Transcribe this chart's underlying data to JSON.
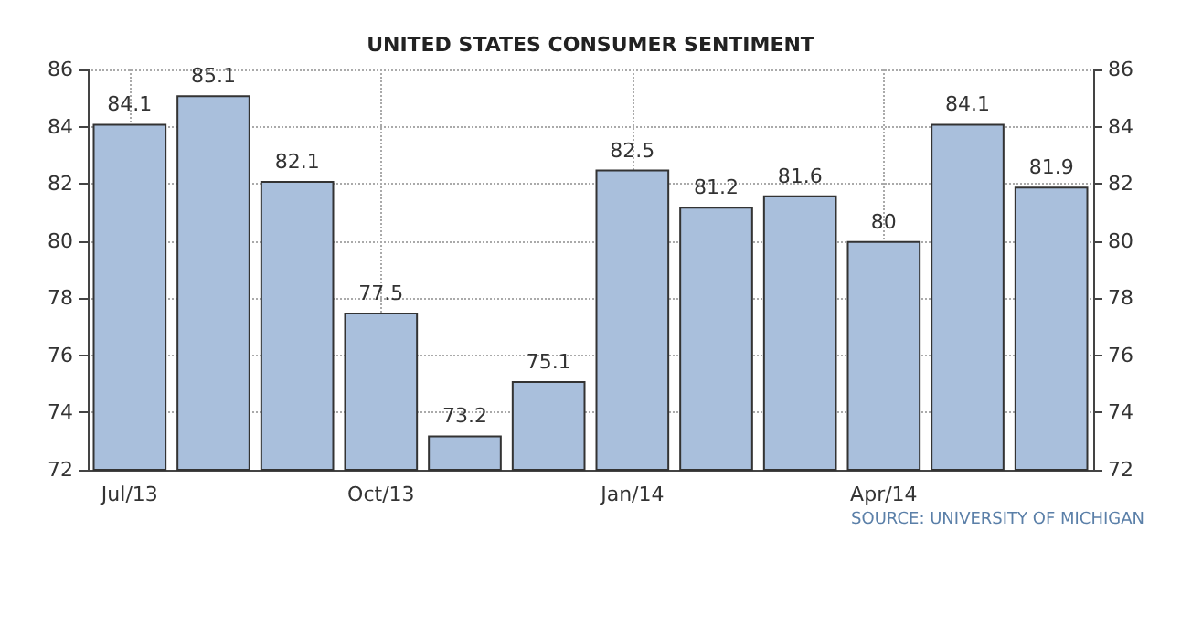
{
  "chart_data": {
    "type": "bar",
    "title": "UNITED STATES CONSUMER SENTIMENT",
    "categories": [
      "Jul/13",
      null,
      null,
      "Oct/13",
      null,
      null,
      "Jan/14",
      null,
      null,
      "Apr/14",
      null,
      null
    ],
    "values": [
      84.1,
      85.1,
      82.1,
      77.5,
      73.2,
      75.1,
      82.5,
      81.2,
      81.6,
      80,
      84.1,
      81.9
    ],
    "color": "#a9bfdc",
    "data_labels": true,
    "grid": true,
    "ylim": [
      72,
      86
    ],
    "yticks": [
      72,
      74,
      76,
      78,
      80,
      82,
      84,
      86
    ],
    "y2lim": [
      72,
      86
    ],
    "y2ticks": [
      72,
      74,
      76,
      78,
      80,
      82,
      84,
      86
    ],
    "annotations": [
      "SOURCE: UNIVERSITY OF MICHIGAN"
    ]
  }
}
